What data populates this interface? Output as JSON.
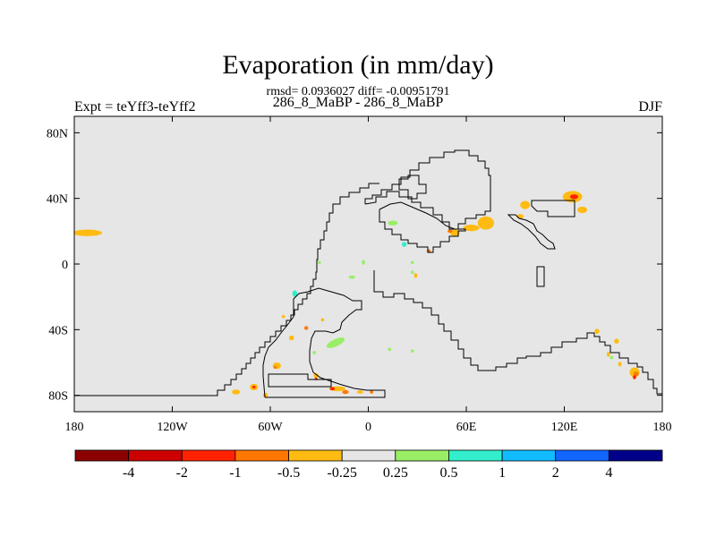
{
  "chart_data": {
    "type": "heatmap",
    "title": "Evaporation (in mm/day)",
    "stats_line": "rmsd= 0.0936027 diff= -0.00951791",
    "subtitle": "286_8_MaBP - 286_8_MaBP",
    "left_label": "Expt = teYff3-teYff2",
    "right_label": "DJF",
    "xlim": [
      -180,
      180
    ],
    "ylim": [
      -90,
      90
    ],
    "x_ticks": [
      {
        "value": -180,
        "label": "180"
      },
      {
        "value": -120,
        "label": "120W"
      },
      {
        "value": -60,
        "label": "60W"
      },
      {
        "value": 0,
        "label": "0"
      },
      {
        "value": 60,
        "label": "60E"
      },
      {
        "value": 120,
        "label": "120E"
      },
      {
        "value": 180,
        "label": "180"
      }
    ],
    "y_ticks": [
      {
        "value": 80,
        "label": "80N"
      },
      {
        "value": 40,
        "label": "40N"
      },
      {
        "value": 0,
        "label": "0"
      },
      {
        "value": -40,
        "label": "40S"
      },
      {
        "value": -80,
        "label": "80S"
      }
    ],
    "colorbar": {
      "colors": [
        "#8b0000",
        "#cc0000",
        "#ff2200",
        "#ff7700",
        "#ffbb11",
        "#e6e6e6",
        "#99ee66",
        "#33eecc",
        "#11bbff",
        "#1166ff",
        "#000088"
      ],
      "tick_labels": [
        "-4",
        "-2",
        "-1",
        "-0.5",
        "-0.25",
        "0.25",
        "0.5",
        "1",
        "2",
        "4"
      ]
    },
    "background_color": "#e6e6e6",
    "patches": [
      {
        "lon": -172,
        "lat": 19,
        "rx": 9,
        "ry": 2,
        "color": "#ffbb11"
      },
      {
        "lon": 125,
        "lat": 41,
        "rx": 6,
        "ry": 3.5,
        "color": "#ffbb11"
      },
      {
        "lon": 126,
        "lat": 41,
        "rx": 2.5,
        "ry": 1.5,
        "color": "#ff2200"
      },
      {
        "lon": 131,
        "lat": 33,
        "rx": 3,
        "ry": 2,
        "color": "#ffbb11"
      },
      {
        "lon": 96,
        "lat": 36,
        "rx": 3,
        "ry": 2.5,
        "color": "#ffbb11"
      },
      {
        "lon": 72,
        "lat": 25,
        "rx": 5,
        "ry": 4,
        "color": "#ffbb11"
      },
      {
        "lon": 63,
        "lat": 22,
        "rx": 5,
        "ry": 2,
        "color": "#ffbb11"
      },
      {
        "lon": 53,
        "lat": 19,
        "rx": 3,
        "ry": 2,
        "color": "#ffbb11"
      },
      {
        "lon": 50,
        "lat": 20,
        "rx": 1.5,
        "ry": 1,
        "color": "#ff7700"
      },
      {
        "lon": 93,
        "lat": 29,
        "rx": 2,
        "ry": 1.5,
        "color": "#ffbb11"
      },
      {
        "lon": 37,
        "lat": 8,
        "rx": 1.2,
        "ry": 1,
        "color": "#ff7700"
      },
      {
        "lon": 15,
        "lat": 25,
        "rx": 3,
        "ry": 1.5,
        "color": "#99ee66"
      },
      {
        "lon": 22,
        "lat": 12,
        "rx": 1.5,
        "ry": 1.5,
        "color": "#33eecc"
      },
      {
        "lon": 27,
        "lat": 1,
        "rx": 1,
        "ry": 1,
        "color": "#99ee66"
      },
      {
        "lon": -30,
        "lat": 1,
        "rx": 1,
        "ry": 1,
        "color": "#99ee66"
      },
      {
        "lon": -3,
        "lat": 1,
        "rx": 1,
        "ry": 1.5,
        "color": "#99ee66"
      },
      {
        "lon": -10,
        "lat": -8,
        "rx": 2,
        "ry": 1,
        "color": "#99ee66"
      },
      {
        "lon": 27,
        "lat": -5,
        "rx": 1,
        "ry": 1,
        "color": "#99ee66"
      },
      {
        "lon": 29,
        "lat": -7,
        "rx": 1,
        "ry": 1.5,
        "color": "#ffbb11"
      },
      {
        "lon": -45,
        "lat": -18,
        "rx": 1.5,
        "ry": 2,
        "color": "#33eecc"
      },
      {
        "lon": -52,
        "lat": -32,
        "rx": 1,
        "ry": 1,
        "color": "#ffbb11"
      },
      {
        "lon": -28,
        "lat": -34,
        "rx": 1,
        "ry": 1,
        "color": "#ffbb11"
      },
      {
        "lon": -38,
        "lat": -39,
        "rx": 1.2,
        "ry": 1.2,
        "color": "#ff7700"
      },
      {
        "lon": -47,
        "lat": -45,
        "rx": 1.5,
        "ry": 1.5,
        "color": "#ffbb11"
      },
      {
        "lon": -20,
        "lat": -48,
        "rx": 6,
        "ry": 2.2,
        "color": "#99ee66",
        "rot": -25
      },
      {
        "lon": -33,
        "lat": -54,
        "rx": 1,
        "ry": 1,
        "color": "#99ee66"
      },
      {
        "lon": 13,
        "lat": -52,
        "rx": 1,
        "ry": 1,
        "color": "#99ee66"
      },
      {
        "lon": 27,
        "lat": -53,
        "rx": 1,
        "ry": 1,
        "color": "#99ee66"
      },
      {
        "lon": -56,
        "lat": -62,
        "rx": 2.5,
        "ry": 2,
        "color": "#ffbb11"
      },
      {
        "lon": -57,
        "lat": -63,
        "rx": 1,
        "ry": 0.8,
        "color": "#ff7700"
      },
      {
        "lon": -32,
        "lat": -68,
        "rx": 1.5,
        "ry": 1.5,
        "color": "#ffbb11"
      },
      {
        "lon": -32,
        "lat": -70,
        "rx": 0.8,
        "ry": 0.8,
        "color": "#ff2200"
      },
      {
        "lon": -70,
        "lat": -75,
        "rx": 2.5,
        "ry": 2,
        "color": "#ffbb11"
      },
      {
        "lon": -70,
        "lat": -75,
        "rx": 1,
        "ry": 0.8,
        "color": "#ff2200"
      },
      {
        "lon": -81,
        "lat": -78,
        "rx": 2.5,
        "ry": 1.5,
        "color": "#ffbb11"
      },
      {
        "lon": -63,
        "lat": -80,
        "rx": 1.5,
        "ry": 1.5,
        "color": "#ffbb11"
      },
      {
        "lon": -19,
        "lat": -76,
        "rx": 5,
        "ry": 1.5,
        "color": "#ffbb11"
      },
      {
        "lon": -22,
        "lat": -76,
        "rx": 1.5,
        "ry": 1,
        "color": "#ff2200"
      },
      {
        "lon": -14,
        "lat": -78,
        "rx": 2,
        "ry": 1.2,
        "color": "#ff7700"
      },
      {
        "lon": -5,
        "lat": -78,
        "rx": 2,
        "ry": 1,
        "color": "#ffbb11"
      },
      {
        "lon": 2,
        "lat": -78,
        "rx": 1,
        "ry": 1,
        "color": "#ff7700"
      },
      {
        "lon": 163,
        "lat": -66,
        "rx": 3,
        "ry": 3,
        "color": "#ffbb11"
      },
      {
        "lon": 164,
        "lat": -67,
        "rx": 1.5,
        "ry": 1.5,
        "color": "#ff7700"
      },
      {
        "lon": 163,
        "lat": -69,
        "rx": 1,
        "ry": 1.2,
        "color": "#ff2200"
      },
      {
        "lon": 140,
        "lat": -41,
        "rx": 1.5,
        "ry": 1.5,
        "color": "#ffbb11"
      },
      {
        "lon": 152,
        "lat": -47,
        "rx": 1.5,
        "ry": 1.5,
        "color": "#ffbb11"
      },
      {
        "lon": 147,
        "lat": -55,
        "rx": 1,
        "ry": 1.5,
        "color": "#ffbb11"
      },
      {
        "lon": 149,
        "lat": -57,
        "rx": 1,
        "ry": 1,
        "color": "#99ee66"
      },
      {
        "lon": 154,
        "lat": -61,
        "rx": 1,
        "ry": 1.5,
        "color": "#ffbb11"
      }
    ]
  }
}
